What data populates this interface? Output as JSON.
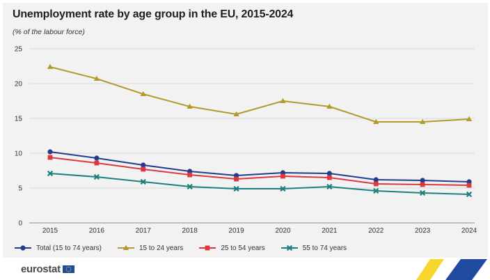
{
  "title": "Unemployment rate by age group in the EU, 2015-2024",
  "subtitle": "(% of the labour force)",
  "logo_text": "eurostat",
  "colors": {
    "panel_bg": "#f2f2f2",
    "grid": "#d9d9d9",
    "total": "#213b8f",
    "age_15_24": "#b39a2a",
    "age_25_54": "#d9393f",
    "age_55_74": "#1f7f80",
    "eu_flag": "#1f4aa0",
    "eu_stars": "#f6d21a",
    "corner_yellow": "#f6d21a",
    "corner_blue": "#1f4aa0"
  },
  "chart_data": {
    "type": "line",
    "title": "Unemployment rate by age group in the EU, 2015-2024",
    "subtitle": "(% of the labour force)",
    "categories": [
      "2015",
      "2016",
      "2017",
      "2018",
      "2019",
      "2020",
      "2021",
      "2022",
      "2023",
      "2024"
    ],
    "ylim": [
      0,
      25
    ],
    "yticks": [
      "0",
      "5",
      "10",
      "15",
      "20",
      "25"
    ],
    "grid": true,
    "legend_position": "bottom-left",
    "series": [
      {
        "name": "Total (15 to 74 years)",
        "marker": "circle",
        "color": "#213b8f",
        "values": [
          10.2,
          9.3,
          8.3,
          7.4,
          6.8,
          7.2,
          7.1,
          6.2,
          6.1,
          5.9
        ]
      },
      {
        "name": "15 to 24 years",
        "marker": "triangle",
        "color": "#b39a2a",
        "values": [
          22.4,
          20.7,
          18.5,
          16.7,
          15.6,
          17.5,
          16.7,
          14.5,
          14.5,
          14.9
        ]
      },
      {
        "name": "25 to 54 years",
        "marker": "square",
        "color": "#d9393f",
        "values": [
          9.4,
          8.6,
          7.7,
          6.9,
          6.3,
          6.7,
          6.5,
          5.6,
          5.5,
          5.4
        ]
      },
      {
        "name": "55 to 74 years",
        "marker": "cross",
        "color": "#1f7f80",
        "values": [
          7.1,
          6.6,
          5.9,
          5.2,
          4.9,
          4.9,
          5.2,
          4.6,
          4.3,
          4.1
        ]
      }
    ]
  }
}
